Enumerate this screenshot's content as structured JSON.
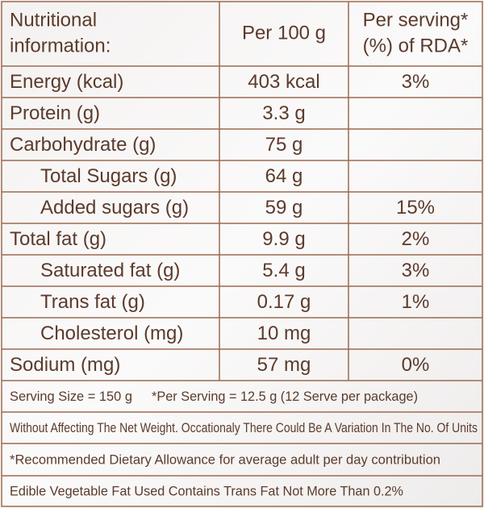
{
  "table": {
    "header": [
      [
        "Nutritional",
        "information:"
      ],
      [
        "Per 100 g"
      ],
      [
        "Per serving*",
        "(%) of RDA*"
      ]
    ],
    "rows": [
      [
        "Energy (kcal)",
        "403 kcal",
        "3%"
      ],
      [
        "Protein (g)",
        "3.3 g",
        null
      ],
      [
        "Carbohydrate (g)",
        "75 g",
        null
      ],
      [
        "Total Sugars (g)",
        "64 g",
        null
      ],
      [
        "Added sugars (g)",
        "59 g",
        "15%"
      ],
      [
        "Total fat (g)",
        "9.9 g",
        "2%"
      ],
      [
        "Saturated fat (g)",
        "5.4 g",
        "3%"
      ],
      [
        "Trans fat (g)",
        "0.17 g",
        "1%"
      ],
      [
        "Cholesterol (mg)",
        "10 mg",
        null
      ],
      [
        "Sodium (mg)",
        "57 mg",
        "0%"
      ]
    ],
    "notes": [
      [
        "Serving Size = 150 g",
        "*Per Serving = 12.5 g (12 Serve per package)"
      ],
      [
        "Without Affecting The Net Weight. Occationaly There Could Be A Variation In The No. Of Units"
      ],
      [
        "*Recommended Dietary Allowance for average adult per day contribution"
      ],
      [
        "Edible Vegetable Fat Used Contains Trans Fat Not More Than 0.2%"
      ]
    ]
  }
}
